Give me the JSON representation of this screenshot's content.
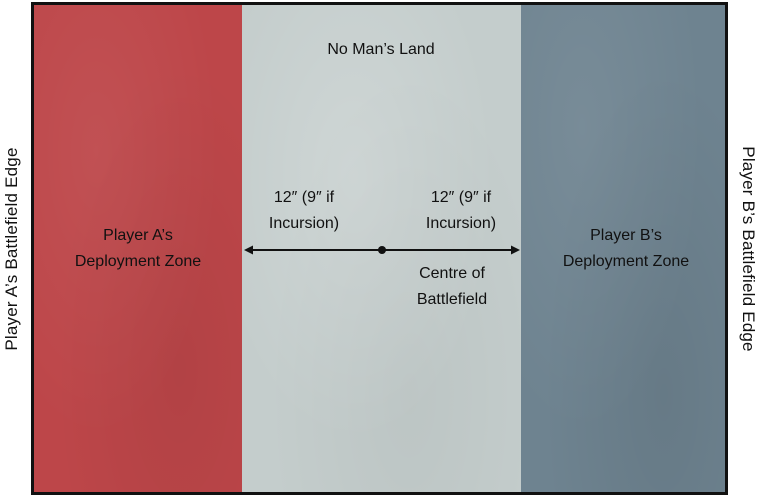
{
  "edges": {
    "player_a": "Player A’s Battlefield Edge",
    "player_b": "Player B’s Battlefield Edge"
  },
  "zones": {
    "no_mans_land": "No Man’s Land",
    "player_a": [
      "Player A’s",
      "Deployment Zone"
    ],
    "player_b": [
      "Player B’s",
      "Deployment Zone"
    ]
  },
  "distances": {
    "left": [
      "12″ (9″ if",
      "Incursion)"
    ],
    "right": [
      "12″ (9″ if",
      "Incursion)"
    ]
  },
  "centre": [
    "Centre of",
    "Battlefield"
  ],
  "colors": {
    "player_a_zone": "#bd4649",
    "no_mans_land": "#c4cdcc",
    "player_b_zone": "#6e8390",
    "border": "#111111"
  }
}
